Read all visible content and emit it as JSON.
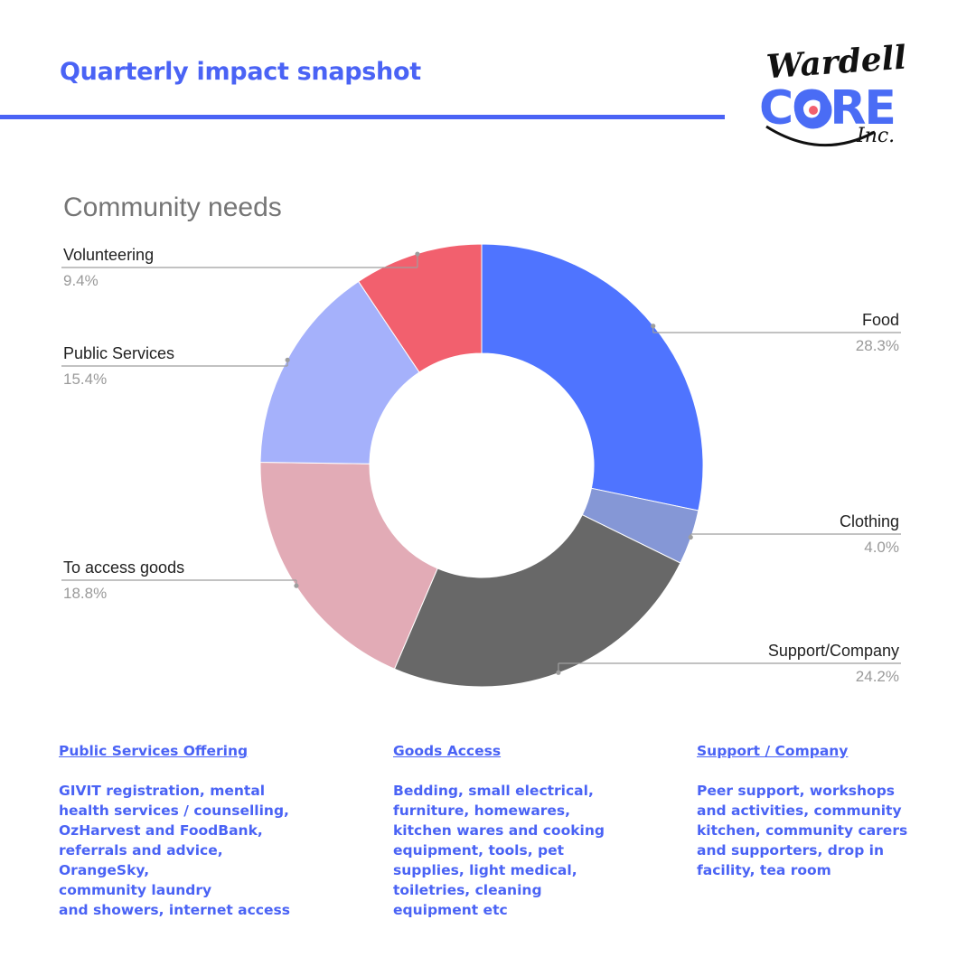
{
  "header": {
    "title": "Quarterly impact snapshot"
  },
  "logo": {
    "script_text": "Wardell",
    "core_text": "CORE",
    "inc_text": "Inc."
  },
  "colors": {
    "accent": "#4a63f5"
  },
  "chart_data": {
    "type": "pie",
    "donut": true,
    "title": "Community needs",
    "slices": [
      {
        "label": "Food",
        "value": 28.3,
        "value_label": "28.3%",
        "color": "#4f74ff"
      },
      {
        "label": "Clothing",
        "value": 4.0,
        "value_label": "4.0%",
        "color": "#8597d6"
      },
      {
        "label": "Support/Company",
        "value": 24.2,
        "value_label": "24.2%",
        "color": "#686868"
      },
      {
        "label": "To access goods",
        "value": 18.8,
        "value_label": "18.8%",
        "color": "#e2abb6"
      },
      {
        "label": "Public Services",
        "value": 15.4,
        "value_label": "15.4%",
        "color": "#a5b1fb"
      },
      {
        "label": "Volunteering",
        "value": 9.4,
        "value_label": "9.4%",
        "color": "#f2606e"
      }
    ]
  },
  "columns": [
    {
      "heading": "Public Services Offering",
      "lines": [
        "GIVIT registration, mental",
        "health services / counselling,",
        "OzHarvest and FoodBank,",
        "referrals and advice,",
        "OrangeSky,",
        "community laundry",
        "and showers, internet access"
      ]
    },
    {
      "heading": "Goods Access",
      "lines": [
        "Bedding, small electrical,",
        "furniture, homewares,",
        "kitchen wares and cooking",
        "equipment, tools, pet",
        "supplies, light medical,",
        "toiletries, cleaning",
        "equipment etc"
      ]
    },
    {
      "heading": "Support / Company",
      "lines": [
        "Peer support, workshops",
        "and activities, community",
        "kitchen, community carers",
        "and supporters, drop in",
        "facility, tea room"
      ]
    }
  ]
}
